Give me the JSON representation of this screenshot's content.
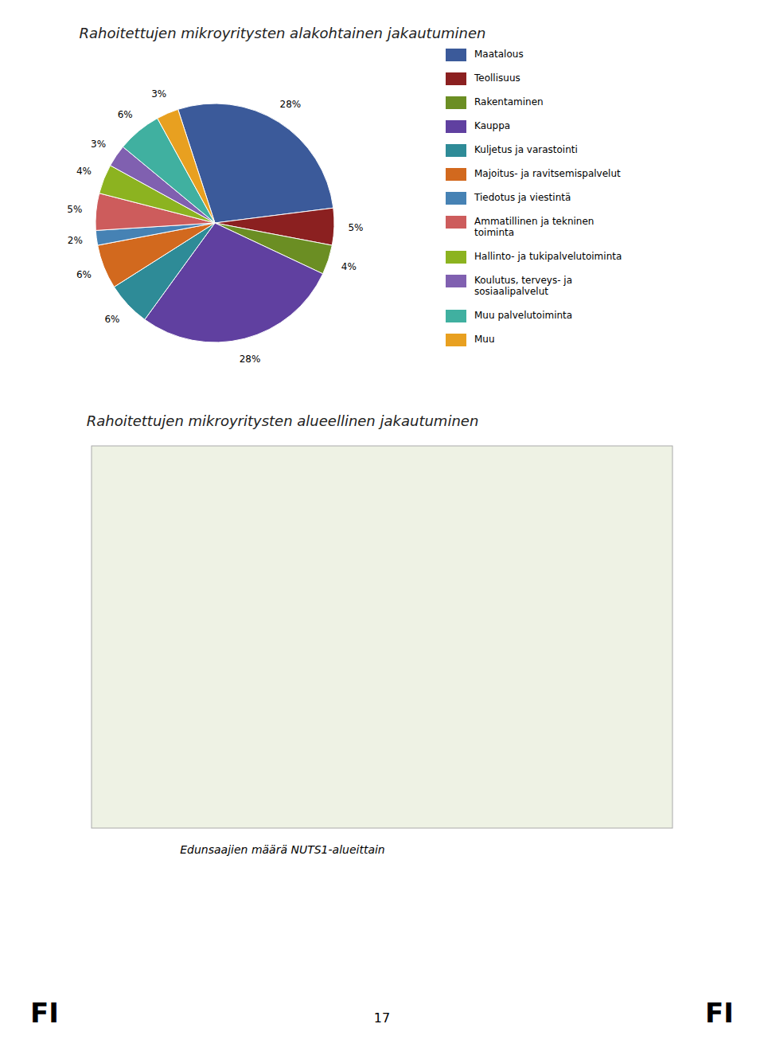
{
  "chart_data": {
    "type": "pie",
    "title": "Rahoitettujen mikroyritysten alakohtainen jakautuminen",
    "subtitle": "Rahoitettujen mikroyritysten alueellinen jakautuminen",
    "annotations": [
      "Edunsaajien määrä NUTS1-alueittain",
      "FI",
      "FI",
      "17"
    ],
    "categories": [
      "Maatalous",
      "Teollisuus",
      "Rakentaminen",
      "Kauppa",
      "Kuljetus ja varastointi",
      "Majoitus- ja ravitsemispalvelut",
      "Tiedotus ja viestintä",
      "Ammatillinen ja tekninen\ntoiminta",
      "Hallinto- ja tukipalvelutoiminta",
      "Koulutus, terveys- ja\nsosiaalipalvelut",
      "Muu palvelutoiminta",
      "Muu"
    ],
    "values": [
      28,
      5,
      4,
      28,
      6,
      6,
      2,
      5,
      4,
      3,
      6,
      3
    ],
    "value_labels": [
      "28%",
      "5%",
      "4%",
      "28%",
      "6%",
      "6%",
      "2%",
      "5%",
      "4%",
      "3%",
      "6%",
      "3%"
    ],
    "colors": [
      "#3B5A9A",
      "#8B2020",
      "#6B8E23",
      "#6040A0",
      "#2E8B97",
      "#D2691E",
      "#4682B4",
      "#CD5C5C",
      "#8CB320",
      "#8060B0",
      "#40B0A0",
      "#E8A020"
    ],
    "data_labels": true,
    "legend": "right"
  }
}
